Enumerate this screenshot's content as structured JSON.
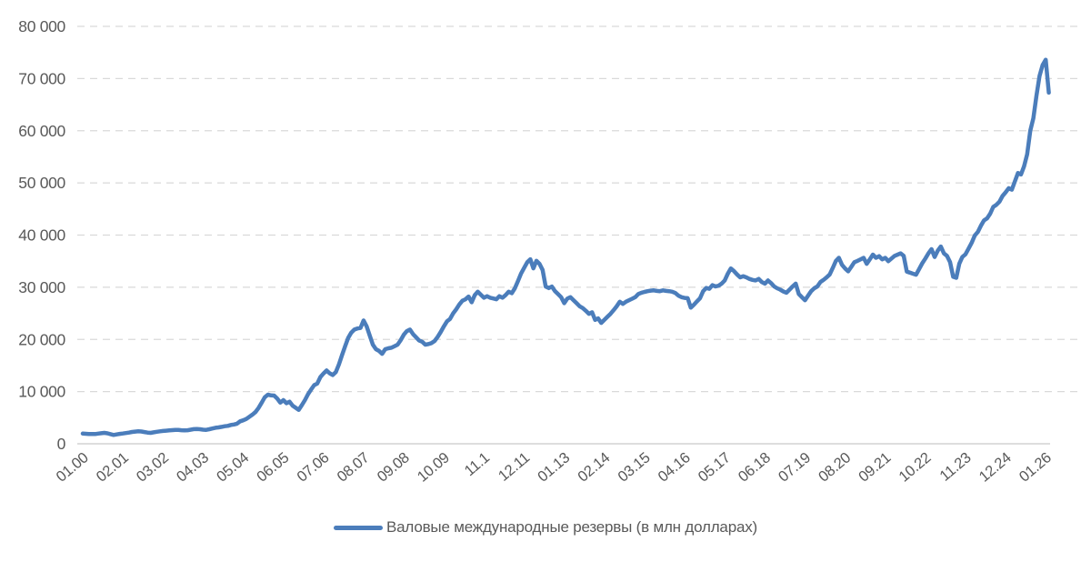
{
  "chart_data": {
    "type": "line",
    "title": "",
    "legend": "Валовые международные резервы (в млн долларах)",
    "x_start": "01.2000",
    "x_end": "02.2026",
    "x_tick_every_months": 13,
    "x_tick_labels": [
      "01.00",
      "02.01",
      "03.02",
      "04.03",
      "05.04",
      "06.05",
      "07.06",
      "08.07",
      "09.08",
      "10.09",
      "11.1",
      "12.11",
      "01.13",
      "02.14",
      "03.15",
      "04.16",
      "05.17",
      "06.18",
      "07.19",
      "08.20",
      "09.21",
      "10.22",
      "11.23",
      "12.24",
      "01.26"
    ],
    "y_axis": {
      "min": 0,
      "max": 80000,
      "step": 10000,
      "tick_labels": [
        "0",
        "10 000",
        "20 000",
        "30 000",
        "40 000",
        "50 000",
        "60 000",
        "70 000",
        "80 000"
      ]
    },
    "grid": {
      "dashed": true,
      "color": "#d9d9d9",
      "axis_color": "#d2d2d2"
    },
    "label_color": "#595959",
    "background": "#ffffff",
    "series": [
      {
        "name": "Валовые международные резервы (в млн долларах)",
        "color": "#4b7dbb",
        "values": [
          1950,
          1920,
          1880,
          1860,
          1870,
          1950,
          2030,
          2090,
          2010,
          1850,
          1690,
          1800,
          1900,
          1970,
          2050,
          2150,
          2260,
          2330,
          2390,
          2360,
          2250,
          2140,
          2090,
          2200,
          2300,
          2390,
          2450,
          2510,
          2560,
          2620,
          2670,
          2650,
          2600,
          2560,
          2600,
          2700,
          2800,
          2840,
          2790,
          2700,
          2670,
          2780,
          2920,
          3070,
          3140,
          3250,
          3360,
          3430,
          3600,
          3700,
          3850,
          4300,
          4500,
          4750,
          5170,
          5600,
          6100,
          6900,
          7900,
          8940,
          9410,
          9280,
          9230,
          8660,
          7890,
          8360,
          7780,
          8070,
          7300,
          6910,
          6500,
          7400,
          8360,
          9500,
          10400,
          11250,
          11550,
          12800,
          13470,
          14050,
          13500,
          13180,
          13760,
          15210,
          17000,
          18690,
          20300,
          21310,
          21890,
          22100,
          22180,
          23640,
          22500,
          20730,
          19000,
          18120,
          17800,
          17240,
          18120,
          18300,
          18410,
          18700,
          18990,
          19860,
          20900,
          21600,
          21890,
          21020,
          20430,
          19800,
          19560,
          18990,
          19100,
          19290,
          19700,
          20500,
          21430,
          22500,
          23460,
          23930,
          25000,
          25780,
          26700,
          27410,
          27700,
          28220,
          27120,
          28500,
          29150,
          28570,
          27990,
          28280,
          27990,
          27850,
          27700,
          28280,
          27990,
          28500,
          29150,
          28860,
          29800,
          31180,
          32630,
          33700,
          34780,
          35360,
          33620,
          35070,
          34490,
          33330,
          30140,
          29840,
          30140,
          29270,
          28690,
          28100,
          26950,
          27810,
          28100,
          27520,
          26940,
          26360,
          26000,
          25490,
          24910,
          25200,
          23740,
          24040,
          23170,
          23740,
          24330,
          24900,
          25600,
          26360,
          27230,
          26800,
          27230,
          27520,
          27800,
          28100,
          28700,
          28950,
          29100,
          29250,
          29350,
          29400,
          29300,
          29250,
          29400,
          29300,
          29250,
          29150,
          28900,
          28400,
          28100,
          27950,
          27900,
          26100,
          26650,
          27300,
          27900,
          29250,
          29850,
          29700,
          30400,
          30150,
          30300,
          30700,
          31300,
          32600,
          33600,
          33100,
          32450,
          31900,
          32100,
          31900,
          31600,
          31400,
          31300,
          31600,
          31000,
          30700,
          31300,
          30800,
          30150,
          29800,
          29550,
          29200,
          28950,
          29550,
          30150,
          30700,
          28700,
          28100,
          27500,
          28400,
          29250,
          29800,
          30150,
          31000,
          31400,
          31900,
          32450,
          33700,
          35050,
          35650,
          34300,
          33600,
          33050,
          33900,
          34800,
          35050,
          35350,
          35650,
          34500,
          35350,
          36250,
          35650,
          35950,
          35350,
          35650,
          35000,
          35500,
          36000,
          36250,
          36500,
          36000,
          33000,
          32800,
          32600,
          32400,
          33500,
          34600,
          35500,
          36500,
          37300,
          35800,
          37000,
          37800,
          36500,
          36000,
          34800,
          32000,
          31800,
          34500,
          35800,
          36300,
          37400,
          38500,
          39900,
          40600,
          41800,
          42800,
          43200,
          44100,
          45400,
          45800,
          46400,
          47500,
          48200,
          49000,
          48700,
          50300,
          51900,
          51600,
          53200,
          55500,
          60000,
          62400,
          66700,
          70500,
          72600,
          73600,
          67300
        ]
      }
    ]
  }
}
